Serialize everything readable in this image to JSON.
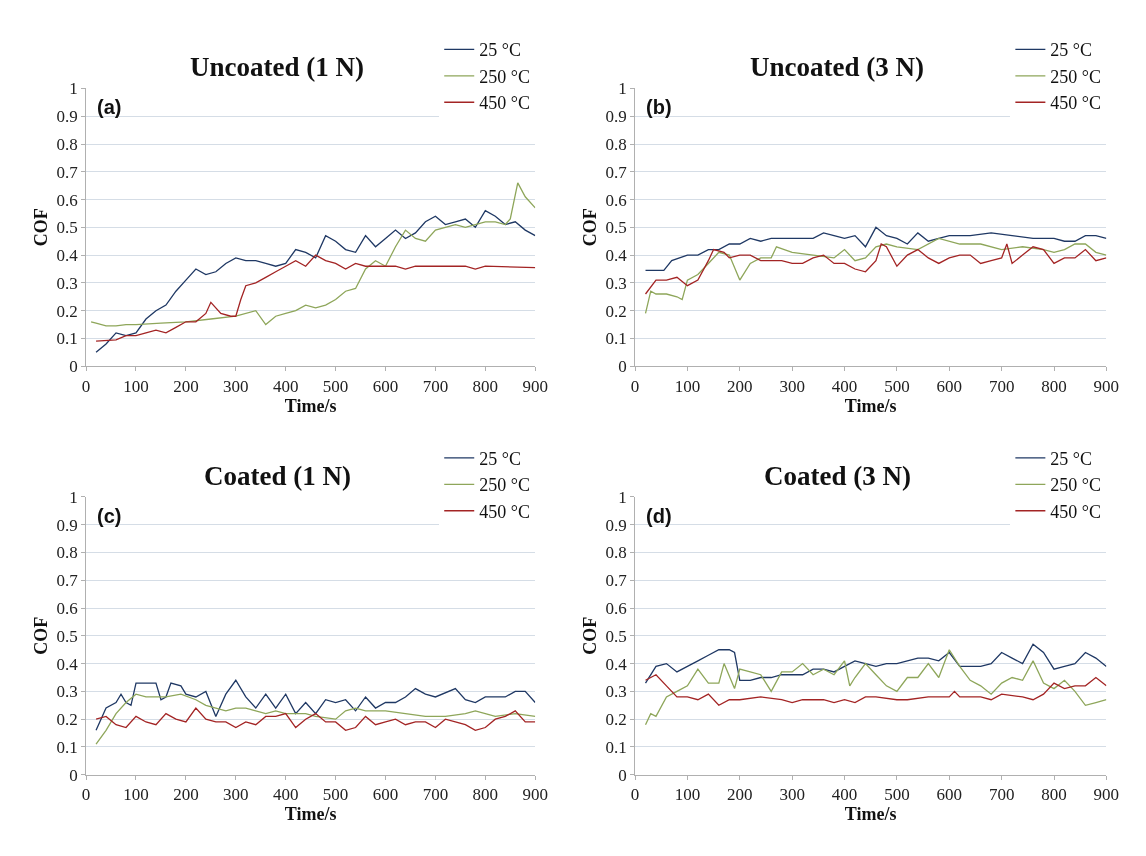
{
  "chart_data": [
    {
      "type": "line",
      "title": "Uncoated (1 N)",
      "xlabel": "Time/s",
      "ylabel": "COF",
      "annotations": [
        "(a)"
      ],
      "xlim": [
        0,
        900
      ],
      "ylim": [
        0,
        1
      ],
      "xticks": [
        0,
        100,
        200,
        300,
        400,
        500,
        600,
        700,
        800,
        900
      ],
      "yticks": [
        0,
        0.1,
        0.2,
        0.3,
        0.4,
        0.5,
        0.6,
        0.7,
        0.8,
        0.9,
        1
      ],
      "grid": "y",
      "legend": "top right",
      "series": [
        {
          "name": "25 °C",
          "color": "#1f3864",
          "x": [
            20,
            40,
            60,
            80,
            100,
            120,
            140,
            160,
            180,
            200,
            220,
            240,
            260,
            280,
            300,
            320,
            340,
            360,
            380,
            400,
            420,
            440,
            460,
            480,
            500,
            520,
            540,
            560,
            580,
            600,
            620,
            640,
            660,
            680,
            700,
            720,
            740,
            760,
            780,
            800,
            820,
            840,
            860,
            880,
            900
          ],
          "values": [
            0.05,
            0.08,
            0.12,
            0.11,
            0.12,
            0.17,
            0.2,
            0.22,
            0.27,
            0.31,
            0.35,
            0.33,
            0.34,
            0.37,
            0.39,
            0.38,
            0.38,
            0.37,
            0.36,
            0.37,
            0.42,
            0.41,
            0.39,
            0.47,
            0.45,
            0.42,
            0.41,
            0.47,
            0.43,
            0.46,
            0.49,
            0.46,
            0.48,
            0.52,
            0.54,
            0.51,
            0.52,
            0.53,
            0.5,
            0.56,
            0.54,
            0.51,
            0.52,
            0.49,
            0.47
          ]
        },
        {
          "name": "250 °C",
          "color": "#8ea65a",
          "x": [
            10,
            20,
            40,
            60,
            80,
            100,
            150,
            200,
            250,
            300,
            340,
            360,
            380,
            400,
            420,
            440,
            460,
            480,
            500,
            520,
            540,
            560,
            580,
            600,
            620,
            640,
            660,
            680,
            700,
            720,
            740,
            760,
            780,
            800,
            820,
            840,
            850,
            865,
            880,
            900
          ],
          "values": [
            0.16,
            0.155,
            0.145,
            0.145,
            0.15,
            0.15,
            0.155,
            0.16,
            0.17,
            0.18,
            0.2,
            0.15,
            0.18,
            0.19,
            0.2,
            0.22,
            0.21,
            0.22,
            0.24,
            0.27,
            0.28,
            0.35,
            0.38,
            0.36,
            0.43,
            0.49,
            0.46,
            0.45,
            0.49,
            0.5,
            0.51,
            0.5,
            0.51,
            0.52,
            0.52,
            0.51,
            0.53,
            0.66,
            0.61,
            0.57
          ]
        },
        {
          "name": "450 °C",
          "color": "#a32424",
          "x": [
            20,
            60,
            80,
            100,
            120,
            140,
            160,
            180,
            200,
            220,
            240,
            250,
            270,
            290,
            300,
            310,
            320,
            340,
            360,
            380,
            400,
            420,
            440,
            460,
            480,
            500,
            520,
            540,
            560,
            600,
            620,
            640,
            660,
            700,
            760,
            780,
            800,
            900
          ],
          "values": [
            0.09,
            0.095,
            0.11,
            0.11,
            0.12,
            0.13,
            0.12,
            0.14,
            0.16,
            0.16,
            0.19,
            0.23,
            0.19,
            0.18,
            0.18,
            0.24,
            0.29,
            0.3,
            0.32,
            0.34,
            0.36,
            0.38,
            0.36,
            0.4,
            0.38,
            0.37,
            0.35,
            0.37,
            0.36,
            0.36,
            0.36,
            0.35,
            0.36,
            0.36,
            0.36,
            0.35,
            0.36,
            0.355
          ]
        }
      ]
    },
    {
      "type": "line",
      "title": "Uncoated (3 N)",
      "xlabel": "Time/s",
      "ylabel": "COF",
      "annotations": [
        "(b)"
      ],
      "xlim": [
        0,
        900
      ],
      "ylim": [
        0,
        1
      ],
      "xticks": [
        0,
        100,
        200,
        300,
        400,
        500,
        600,
        700,
        800,
        900
      ],
      "yticks": [
        0,
        0.1,
        0.2,
        0.3,
        0.4,
        0.5,
        0.6,
        0.7,
        0.8,
        0.9,
        1
      ],
      "grid": "y",
      "legend": "top right",
      "series": [
        {
          "name": "25 °C",
          "color": "#1f3864",
          "x": [
            20,
            55,
            70,
            100,
            120,
            140,
            160,
            180,
            200,
            220,
            240,
            260,
            300,
            320,
            340,
            360,
            380,
            400,
            420,
            440,
            460,
            480,
            500,
            520,
            540,
            560,
            580,
            600,
            640,
            680,
            720,
            760,
            800,
            820,
            840,
            860,
            880,
            900
          ],
          "values": [
            0.345,
            0.345,
            0.38,
            0.4,
            0.4,
            0.42,
            0.42,
            0.44,
            0.44,
            0.46,
            0.45,
            0.46,
            0.46,
            0.46,
            0.46,
            0.48,
            0.47,
            0.46,
            0.47,
            0.43,
            0.5,
            0.47,
            0.46,
            0.44,
            0.48,
            0.45,
            0.46,
            0.47,
            0.47,
            0.48,
            0.47,
            0.46,
            0.46,
            0.45,
            0.45,
            0.47,
            0.47,
            0.46
          ]
        },
        {
          "name": "250 °C",
          "color": "#8ea65a",
          "x": [
            20,
            30,
            40,
            60,
            80,
            90,
            100,
            120,
            140,
            160,
            180,
            200,
            220,
            240,
            260,
            270,
            300,
            340,
            380,
            400,
            420,
            440,
            460,
            480,
            500,
            540,
            580,
            620,
            660,
            700,
            740,
            780,
            800,
            820,
            840,
            860,
            880,
            900
          ],
          "values": [
            0.19,
            0.27,
            0.26,
            0.26,
            0.25,
            0.24,
            0.31,
            0.33,
            0.37,
            0.41,
            0.4,
            0.31,
            0.37,
            0.39,
            0.39,
            0.43,
            0.41,
            0.4,
            0.39,
            0.42,
            0.38,
            0.39,
            0.43,
            0.44,
            0.43,
            0.42,
            0.46,
            0.44,
            0.44,
            0.42,
            0.43,
            0.42,
            0.41,
            0.42,
            0.44,
            0.44,
            0.41,
            0.4
          ]
        },
        {
          "name": "450 °C",
          "color": "#a32424",
          "x": [
            20,
            40,
            60,
            80,
            100,
            120,
            140,
            150,
            170,
            180,
            200,
            220,
            240,
            260,
            280,
            300,
            320,
            340,
            360,
            380,
            400,
            420,
            440,
            460,
            470,
            480,
            500,
            520,
            540,
            560,
            580,
            600,
            620,
            640,
            660,
            680,
            700,
            710,
            720,
            740,
            760,
            780,
            800,
            820,
            840,
            860,
            880,
            900
          ],
          "values": [
            0.26,
            0.31,
            0.31,
            0.32,
            0.29,
            0.31,
            0.38,
            0.42,
            0.41,
            0.39,
            0.4,
            0.4,
            0.38,
            0.38,
            0.38,
            0.37,
            0.37,
            0.39,
            0.4,
            0.37,
            0.37,
            0.35,
            0.34,
            0.38,
            0.44,
            0.43,
            0.36,
            0.4,
            0.42,
            0.39,
            0.37,
            0.39,
            0.4,
            0.4,
            0.37,
            0.38,
            0.39,
            0.44,
            0.37,
            0.4,
            0.43,
            0.42,
            0.37,
            0.39,
            0.39,
            0.42,
            0.38,
            0.39
          ]
        }
      ]
    },
    {
      "type": "line",
      "title": "Coated (1 N)",
      "xlabel": "Time/s",
      "ylabel": "COF",
      "annotations": [
        "(c)"
      ],
      "xlim": [
        0,
        900
      ],
      "ylim": [
        0,
        1
      ],
      "xticks": [
        0,
        100,
        200,
        300,
        400,
        500,
        600,
        700,
        800,
        900
      ],
      "yticks": [
        0,
        0.1,
        0.2,
        0.3,
        0.4,
        0.5,
        0.6,
        0.7,
        0.8,
        0.9,
        1
      ],
      "grid": "y",
      "legend": "top right",
      "series": [
        {
          "name": "25 °C",
          "color": "#1f3864",
          "x": [
            20,
            40,
            60,
            70,
            80,
            90,
            100,
            120,
            140,
            150,
            160,
            170,
            190,
            200,
            220,
            240,
            260,
            280,
            300,
            320,
            340,
            360,
            380,
            400,
            420,
            440,
            460,
            480,
            500,
            520,
            540,
            560,
            580,
            600,
            620,
            640,
            660,
            680,
            700,
            740,
            760,
            780,
            800,
            840,
            860,
            880,
            900
          ],
          "values": [
            0.16,
            0.24,
            0.26,
            0.29,
            0.26,
            0.25,
            0.33,
            0.33,
            0.33,
            0.27,
            0.28,
            0.33,
            0.32,
            0.29,
            0.28,
            0.3,
            0.21,
            0.29,
            0.34,
            0.28,
            0.24,
            0.29,
            0.24,
            0.29,
            0.22,
            0.26,
            0.22,
            0.27,
            0.26,
            0.27,
            0.23,
            0.28,
            0.24,
            0.26,
            0.26,
            0.28,
            0.31,
            0.29,
            0.28,
            0.31,
            0.27,
            0.26,
            0.28,
            0.28,
            0.3,
            0.3,
            0.26
          ]
        },
        {
          "name": "250 °C",
          "color": "#8ea65a",
          "x": [
            20,
            40,
            60,
            80,
            100,
            120,
            160,
            190,
            220,
            240,
            260,
            280,
            300,
            320,
            340,
            360,
            380,
            400,
            420,
            440,
            460,
            500,
            520,
            540,
            560,
            600,
            640,
            680,
            720,
            760,
            780,
            800,
            820,
            860,
            900
          ],
          "values": [
            0.11,
            0.16,
            0.22,
            0.26,
            0.29,
            0.28,
            0.28,
            0.29,
            0.27,
            0.25,
            0.24,
            0.23,
            0.24,
            0.24,
            0.23,
            0.22,
            0.23,
            0.22,
            0.22,
            0.22,
            0.21,
            0.2,
            0.23,
            0.24,
            0.23,
            0.23,
            0.22,
            0.21,
            0.21,
            0.22,
            0.23,
            0.22,
            0.21,
            0.22,
            0.21
          ]
        },
        {
          "name": "450 °C",
          "color": "#a32424",
          "x": [
            20,
            40,
            60,
            80,
            100,
            120,
            140,
            160,
            180,
            200,
            220,
            240,
            260,
            280,
            300,
            320,
            340,
            360,
            380,
            400,
            420,
            440,
            460,
            480,
            500,
            520,
            540,
            560,
            580,
            600,
            620,
            640,
            660,
            680,
            700,
            720,
            740,
            760,
            780,
            800,
            820,
            840,
            860,
            880,
            900
          ],
          "values": [
            0.2,
            0.21,
            0.18,
            0.17,
            0.21,
            0.19,
            0.18,
            0.22,
            0.2,
            0.19,
            0.24,
            0.2,
            0.19,
            0.19,
            0.17,
            0.19,
            0.18,
            0.21,
            0.21,
            0.22,
            0.17,
            0.2,
            0.22,
            0.19,
            0.19,
            0.16,
            0.17,
            0.21,
            0.18,
            0.19,
            0.2,
            0.18,
            0.19,
            0.19,
            0.17,
            0.2,
            0.19,
            0.18,
            0.16,
            0.17,
            0.2,
            0.21,
            0.23,
            0.19,
            0.19
          ]
        }
      ]
    },
    {
      "type": "line",
      "title": "Coated (3 N)",
      "xlabel": "Time/s",
      "ylabel": "COF",
      "annotations": [
        "(d)"
      ],
      "xlim": [
        0,
        900
      ],
      "ylim": [
        0,
        1
      ],
      "xticks": [
        0,
        100,
        200,
        300,
        400,
        500,
        600,
        700,
        800,
        900
      ],
      "yticks": [
        0,
        0.1,
        0.2,
        0.3,
        0.4,
        0.5,
        0.6,
        0.7,
        0.8,
        0.9,
        1
      ],
      "grid": "y",
      "legend": "top right",
      "series": [
        {
          "name": "25 °C",
          "color": "#1f3864",
          "x": [
            20,
            40,
            60,
            80,
            100,
            120,
            140,
            160,
            180,
            190,
            200,
            220,
            240,
            260,
            280,
            300,
            320,
            340,
            360,
            380,
            400,
            420,
            440,
            460,
            480,
            500,
            520,
            540,
            560,
            580,
            600,
            620,
            640,
            660,
            680,
            700,
            720,
            740,
            760,
            780,
            800,
            820,
            840,
            860,
            880,
            900
          ],
          "values": [
            0.33,
            0.39,
            0.4,
            0.37,
            0.39,
            0.41,
            0.43,
            0.45,
            0.45,
            0.44,
            0.34,
            0.34,
            0.35,
            0.35,
            0.36,
            0.36,
            0.36,
            0.38,
            0.38,
            0.37,
            0.39,
            0.41,
            0.4,
            0.39,
            0.4,
            0.4,
            0.41,
            0.42,
            0.42,
            0.41,
            0.44,
            0.39,
            0.39,
            0.39,
            0.4,
            0.44,
            0.42,
            0.4,
            0.47,
            0.44,
            0.38,
            0.39,
            0.4,
            0.44,
            0.42,
            0.39
          ]
        },
        {
          "name": "250 °C",
          "color": "#8ea65a",
          "x": [
            20,
            30,
            40,
            60,
            80,
            100,
            120,
            140,
            160,
            170,
            190,
            200,
            220,
            240,
            260,
            280,
            300,
            320,
            340,
            360,
            380,
            400,
            410,
            420,
            440,
            460,
            480,
            500,
            520,
            540,
            560,
            580,
            600,
            620,
            640,
            660,
            680,
            700,
            720,
            740,
            760,
            780,
            800,
            820,
            840,
            860,
            880,
            900
          ],
          "values": [
            0.18,
            0.22,
            0.21,
            0.28,
            0.3,
            0.32,
            0.38,
            0.33,
            0.33,
            0.4,
            0.31,
            0.38,
            0.37,
            0.36,
            0.3,
            0.37,
            0.37,
            0.4,
            0.36,
            0.38,
            0.36,
            0.41,
            0.32,
            0.35,
            0.4,
            0.36,
            0.32,
            0.3,
            0.35,
            0.35,
            0.4,
            0.35,
            0.45,
            0.39,
            0.34,
            0.32,
            0.29,
            0.33,
            0.35,
            0.34,
            0.41,
            0.33,
            0.31,
            0.34,
            0.3,
            0.25,
            0.26,
            0.27
          ]
        },
        {
          "name": "450 °C",
          "color": "#a32424",
          "x": [
            20,
            40,
            60,
            80,
            100,
            120,
            140,
            160,
            180,
            200,
            240,
            280,
            300,
            320,
            360,
            380,
            400,
            420,
            440,
            460,
            500,
            520,
            560,
            600,
            610,
            620,
            660,
            680,
            700,
            740,
            760,
            780,
            800,
            820,
            840,
            860,
            880,
            900
          ],
          "values": [
            0.34,
            0.36,
            0.32,
            0.28,
            0.28,
            0.27,
            0.29,
            0.25,
            0.27,
            0.27,
            0.28,
            0.27,
            0.26,
            0.27,
            0.27,
            0.26,
            0.27,
            0.26,
            0.28,
            0.28,
            0.27,
            0.27,
            0.28,
            0.28,
            0.3,
            0.28,
            0.28,
            0.27,
            0.29,
            0.28,
            0.27,
            0.29,
            0.33,
            0.31,
            0.32,
            0.32,
            0.35,
            0.32
          ]
        }
      ]
    }
  ]
}
